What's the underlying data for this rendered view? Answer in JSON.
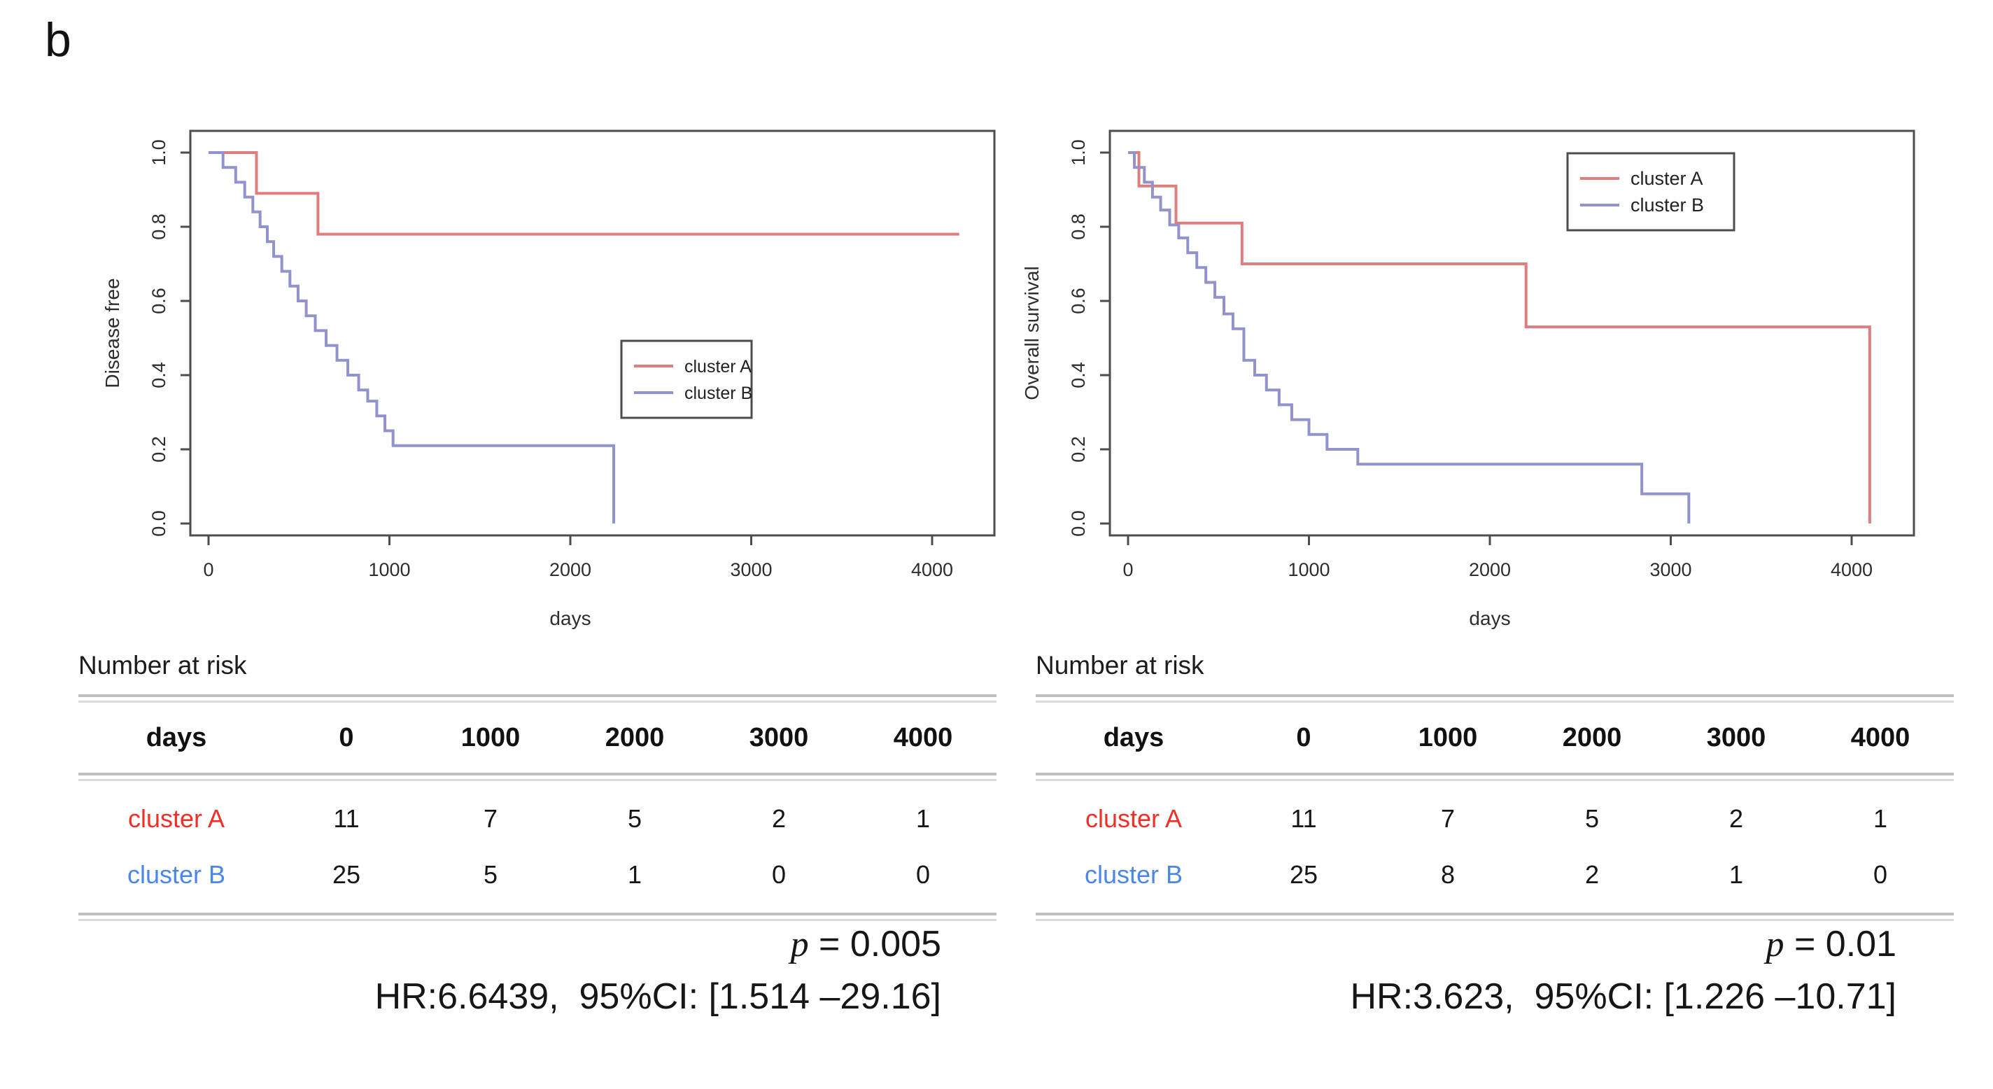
{
  "figure_label": "b",
  "colors": {
    "curve_cluster_a": "#de7e7e",
    "curve_cluster_b": "#9292cc",
    "table_cluster_a": "#f03028",
    "table_cluster_b": "#4b86ea",
    "axis": "#4d4d4d",
    "tick_label": "#2e2e2e",
    "table_rule": "#bfbfbf"
  },
  "chart_data": [
    {
      "type": "line",
      "subtype": "kaplan-meier-step",
      "title": "",
      "xlabel": "days",
      "ylabel": "Disease free",
      "xlim": [
        0,
        4400
      ],
      "ylim": [
        0.0,
        1.0
      ],
      "grid": false,
      "xticks": [
        "0",
        "1000",
        "2000",
        "3000",
        "4000"
      ],
      "yticks": [
        "0.0",
        "0.2",
        "0.4",
        "0.6",
        "0.8",
        "1.0"
      ],
      "legend_position": "center-right",
      "series": [
        {
          "name": "cluster A",
          "steps": [
            [
              0,
              1.0
            ],
            [
              265,
              0.89
            ],
            [
              605,
              0.78
            ],
            [
              4150,
              0.78
            ]
          ]
        },
        {
          "name": "cluster B",
          "steps": [
            [
              0,
              1.0
            ],
            [
              80,
              0.96
            ],
            [
              150,
              0.92
            ],
            [
              200,
              0.88
            ],
            [
              245,
              0.84
            ],
            [
              285,
              0.8
            ],
            [
              325,
              0.76
            ],
            [
              360,
              0.72
            ],
            [
              405,
              0.68
            ],
            [
              450,
              0.64
            ],
            [
              495,
              0.6
            ],
            [
              540,
              0.56
            ],
            [
              590,
              0.52
            ],
            [
              650,
              0.48
            ],
            [
              710,
              0.44
            ],
            [
              770,
              0.4
            ],
            [
              830,
              0.36
            ],
            [
              880,
              0.33
            ],
            [
              930,
              0.29
            ],
            [
              975,
              0.25
            ],
            [
              1020,
              0.21
            ],
            [
              2240,
              0.0
            ]
          ]
        }
      ],
      "risk_table": {
        "title": "Number at risk",
        "header": [
          "days",
          "0",
          "1000",
          "2000",
          "3000",
          "4000"
        ],
        "rows": [
          {
            "label": "cluster A",
            "values": [
              "11",
              "7",
              "5",
              "2",
              "1"
            ]
          },
          {
            "label": "cluster B",
            "values": [
              "25",
              "5",
              "1",
              "0",
              "0"
            ]
          }
        ]
      },
      "stats": {
        "p_symbol": "p",
        "p_value": " = 0.005",
        "hr_line": "HR:6.6439,  95%CI: [1.514 –29.16]"
      }
    },
    {
      "type": "line",
      "subtype": "kaplan-meier-step",
      "title": "",
      "xlabel": "days",
      "ylabel": "Overall survival",
      "xlim": [
        0,
        4400
      ],
      "ylim": [
        0.0,
        1.0
      ],
      "grid": false,
      "xticks": [
        "0",
        "1000",
        "2000",
        "3000",
        "4000"
      ],
      "yticks": [
        "0.0",
        "0.2",
        "0.4",
        "0.6",
        "0.8",
        "1.0"
      ],
      "legend_position": "top-right",
      "series": [
        {
          "name": "cluster A",
          "steps": [
            [
              0,
              1.0
            ],
            [
              60,
              0.91
            ],
            [
              265,
              0.81
            ],
            [
              630,
              0.7
            ],
            [
              2200,
              0.53
            ],
            [
              4100,
              0.0
            ]
          ]
        },
        {
          "name": "cluster B",
          "steps": [
            [
              0,
              1.0
            ],
            [
              35,
              0.96
            ],
            [
              90,
              0.92
            ],
            [
              135,
              0.88
            ],
            [
              180,
              0.845
            ],
            [
              230,
              0.805
            ],
            [
              280,
              0.77
            ],
            [
              330,
              0.73
            ],
            [
              380,
              0.69
            ],
            [
              430,
              0.65
            ],
            [
              480,
              0.61
            ],
            [
              530,
              0.565
            ],
            [
              580,
              0.525
            ],
            [
              640,
              0.44
            ],
            [
              700,
              0.4
            ],
            [
              765,
              0.36
            ],
            [
              835,
              0.32
            ],
            [
              905,
              0.28
            ],
            [
              1000,
              0.24
            ],
            [
              1100,
              0.2
            ],
            [
              1270,
              0.16
            ],
            [
              2840,
              0.08
            ],
            [
              3100,
              0.0
            ]
          ]
        }
      ],
      "risk_table": {
        "title": "Number at risk",
        "header": [
          "days",
          "0",
          "1000",
          "2000",
          "3000",
          "4000"
        ],
        "rows": [
          {
            "label": "cluster A",
            "values": [
              "11",
              "7",
              "5",
              "2",
              "1"
            ]
          },
          {
            "label": "cluster B",
            "values": [
              "25",
              "8",
              "2",
              "1",
              "0"
            ]
          }
        ]
      },
      "stats": {
        "p_symbol": "p",
        "p_value": " = 0.01",
        "hr_line": "HR:3.623,  95%CI: [1.226 –10.71]"
      }
    }
  ]
}
